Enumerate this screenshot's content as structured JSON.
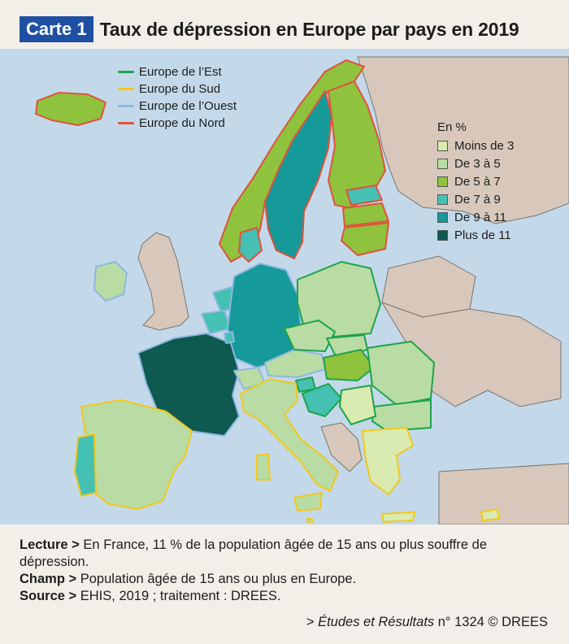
{
  "header": {
    "tag": "Carte 1",
    "title": "Taux de dépression en Europe par pays en 2019"
  },
  "region_legend": [
    {
      "label": "Europe de l’Est",
      "color": "#1fa34a"
    },
    {
      "label": "Europe du Sud",
      "color": "#f2c81b"
    },
    {
      "label": "Europe de l’Ouest",
      "color": "#8fb7e0"
    },
    {
      "label": "Europe du Nord",
      "color": "#e0523c"
    }
  ],
  "value_legend": {
    "unit": "En %",
    "classes": [
      {
        "label": "Moins de 3",
        "color": "#d9ebb1"
      },
      {
        "label": "De 3 à 5",
        "color": "#b9dca4"
      },
      {
        "label": "De 5 à 7",
        "color": "#8fc23d"
      },
      {
        "label": "De 7 à 9",
        "color": "#45c1b3"
      },
      {
        "label": "De 9 à 11",
        "color": "#169a99"
      },
      {
        "label": "Plus de 11",
        "color": "#0e5a50"
      }
    ]
  },
  "colors": {
    "sea": "#c3d9ea",
    "non_data_land": "#d8c8bc",
    "land_border": "#7b746d"
  },
  "notes": {
    "lecture_label": "Lecture >",
    "lecture_text": "En France, 11 % de la population âgée de 15 ans ou plus souffre de dépression.",
    "champ_label": "Champ >",
    "champ_text": "Population âgée de 15 ans ou plus en Europe.",
    "source_label": "Source >",
    "source_text": "EHIS, 2019 ; traitement : DREES."
  },
  "credit": {
    "prefix": ">",
    "publication": "Études et Résultats",
    "suffix": "n° 1324 © DREES"
  }
}
